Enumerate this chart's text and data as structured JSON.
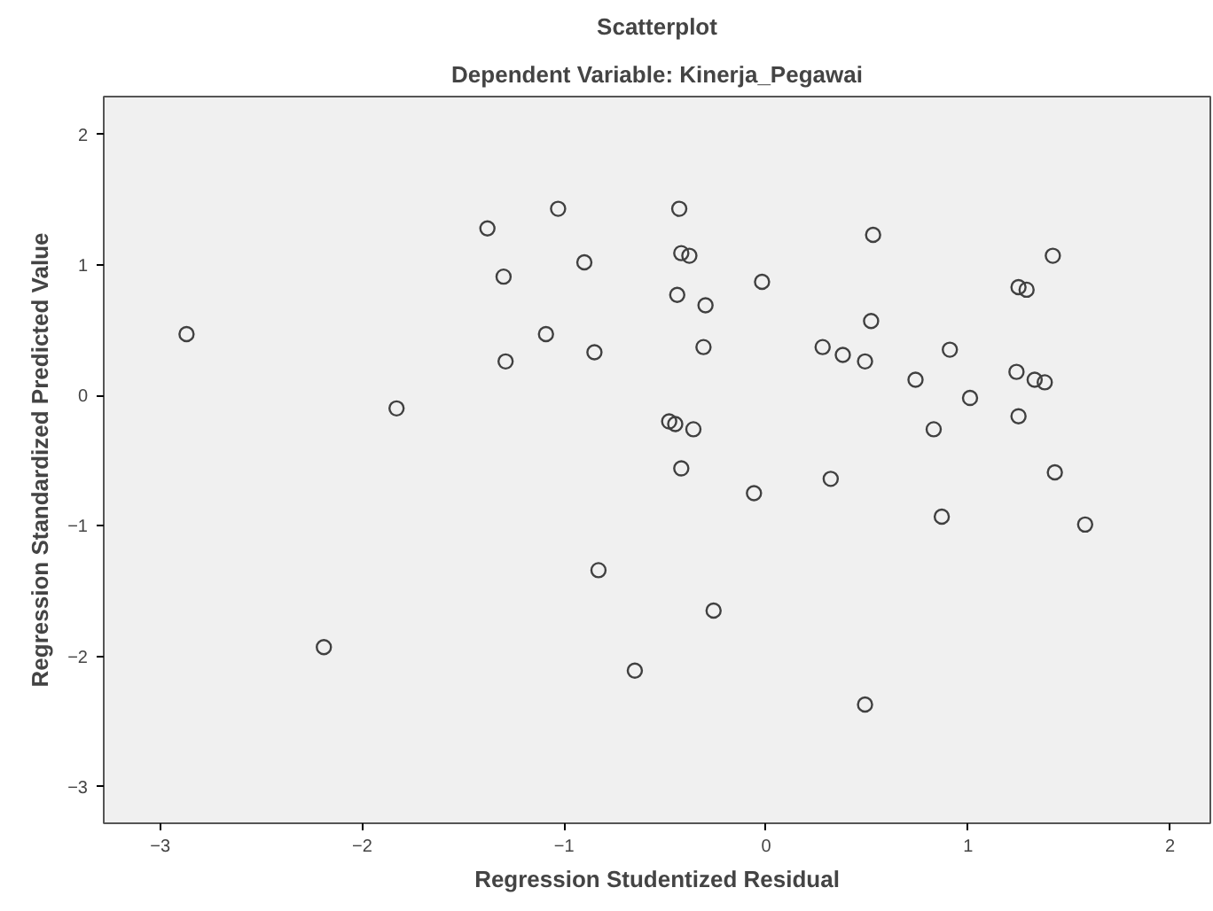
{
  "chart_data": {
    "type": "scatter",
    "title": "Scatterplot",
    "subtitle": "Dependent Variable: Kinerja_Pegawai",
    "xlabel": "Regression Studentized Residual",
    "ylabel": "Regression Standardized Predicted Value",
    "x": [
      -2.87,
      -1.83,
      -1.38,
      -1.03,
      -0.9,
      -1.3,
      -1.09,
      -1.29,
      -0.85,
      -0.83,
      -2.19,
      -0.43,
      -0.42,
      -0.38,
      0.53,
      1.42,
      -0.02,
      -0.44,
      -0.3,
      1.25,
      1.29,
      0.52,
      -0.31,
      0.28,
      0.38,
      0.49,
      0.91,
      0.74,
      1.24,
      1.33,
      1.38,
      1.01,
      1.25,
      -0.48,
      -0.45,
      -0.36,
      0.83,
      -0.42,
      0.32,
      1.43,
      -0.06,
      0.87,
      1.58,
      -0.26,
      -0.65,
      0.49
    ],
    "series": [
      {
        "color": "#404040",
        "values": [
          0.47,
          -0.1,
          1.28,
          1.43,
          1.02,
          0.91,
          0.47,
          0.26,
          0.33,
          -1.34,
          -1.93,
          1.43,
          1.09,
          1.07,
          1.23,
          1.07,
          0.87,
          0.77,
          0.69,
          0.83,
          0.81,
          0.57,
          0.37,
          0.37,
          0.31,
          0.26,
          0.35,
          0.12,
          0.18,
          0.12,
          0.1,
          -0.02,
          -0.16,
          -0.2,
          -0.22,
          -0.26,
          -0.26,
          -0.56,
          -0.64,
          -0.59,
          -0.75,
          -0.93,
          -0.99,
          -1.65,
          -2.11,
          -2.37
        ]
      }
    ],
    "xlim": [
      -3.28,
      2.2
    ],
    "ylim": [
      -3.28,
      2.29
    ],
    "xticks": [
      -3,
      -2,
      -1,
      0,
      1,
      2
    ],
    "yticks": [
      -3,
      -2,
      -1,
      0,
      1,
      2
    ],
    "marker": "circle",
    "grid": false
  }
}
